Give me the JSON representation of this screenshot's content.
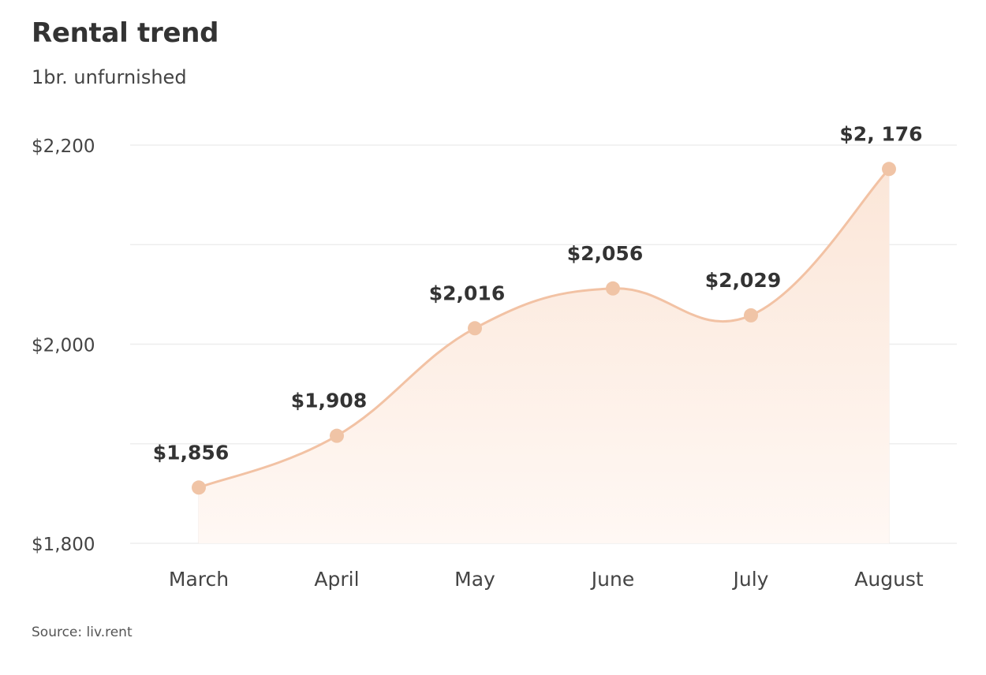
{
  "header": {
    "title": "Rental trend",
    "subtitle": "1br. unfurnished"
  },
  "footer": {
    "source": "Source: liv.rent"
  },
  "colors": {
    "line": "#f2c2a4",
    "marker": "#f0c4a6",
    "area_top": "#fbe6d8",
    "area_bottom": "#fff8f4",
    "grid": "#eeeeee"
  },
  "chart_data": {
    "type": "area",
    "categories": [
      "March",
      "April",
      "May",
      "June",
      "July",
      "August"
    ],
    "values": [
      1856,
      1908,
      2016,
      2056,
      2029,
      2176
    ],
    "data_labels": [
      "$1,856",
      "$1,908",
      "$2,016",
      "$2,056",
      "$2,029",
      "$2, 176"
    ],
    "y_ticks": [
      {
        "value": 1800,
        "label": "$1,800"
      },
      {
        "value": 2000,
        "label": "$2,000"
      },
      {
        "value": 2200,
        "label": "$2,200"
      }
    ],
    "ylim": [
      1800,
      2200
    ],
    "grid_step": 100,
    "smooth": true,
    "markers": true
  }
}
